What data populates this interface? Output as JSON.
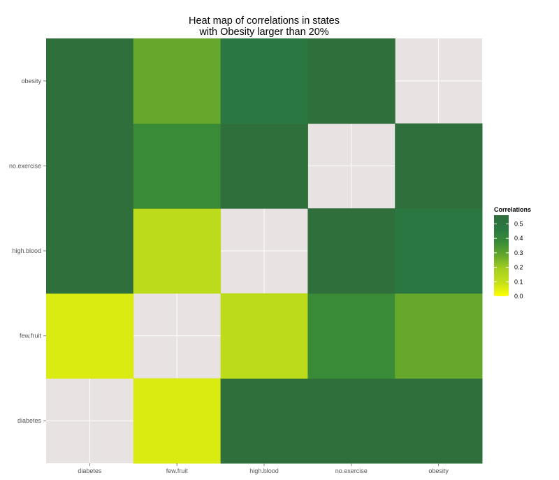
{
  "chart_data": {
    "type": "heatmap",
    "title_lines": [
      "Heat map of correlations in states",
      "with Obesity larger than 20%"
    ],
    "xlabel": "",
    "ylabel": "",
    "x_categories": [
      "diabetes",
      "few.fruit",
      "high.blood",
      "no.exercise",
      "obesity"
    ],
    "y_categories": [
      "diabetes",
      "few.fruit",
      "high.blood",
      "no.exercise",
      "obesity"
    ],
    "values": [
      [
        null,
        0.06,
        0.55,
        0.55,
        0.55
      ],
      [
        0.06,
        null,
        0.12,
        0.38,
        0.28
      ],
      [
        0.55,
        0.12,
        null,
        0.55,
        0.48
      ],
      [
        0.55,
        0.38,
        0.55,
        null,
        0.55
      ],
      [
        0.55,
        0.28,
        0.48,
        0.55,
        null
      ]
    ],
    "legend": {
      "title": "Correlations",
      "ticks": [
        "0.5",
        "0.4",
        "0.3",
        "0.2",
        "0.1",
        "0.0"
      ],
      "range": [
        0,
        0.56
      ],
      "position": "right"
    },
    "colors": {
      "panel_background": "#e8e2e2",
      "grid_line": "#ffffff",
      "scale": [
        "#ffff00",
        "#c4e01a",
        "#a6d01e",
        "#66a82c",
        "#3b8c36",
        "#2a7843",
        "#2f6e3a"
      ]
    },
    "grid": true
  }
}
